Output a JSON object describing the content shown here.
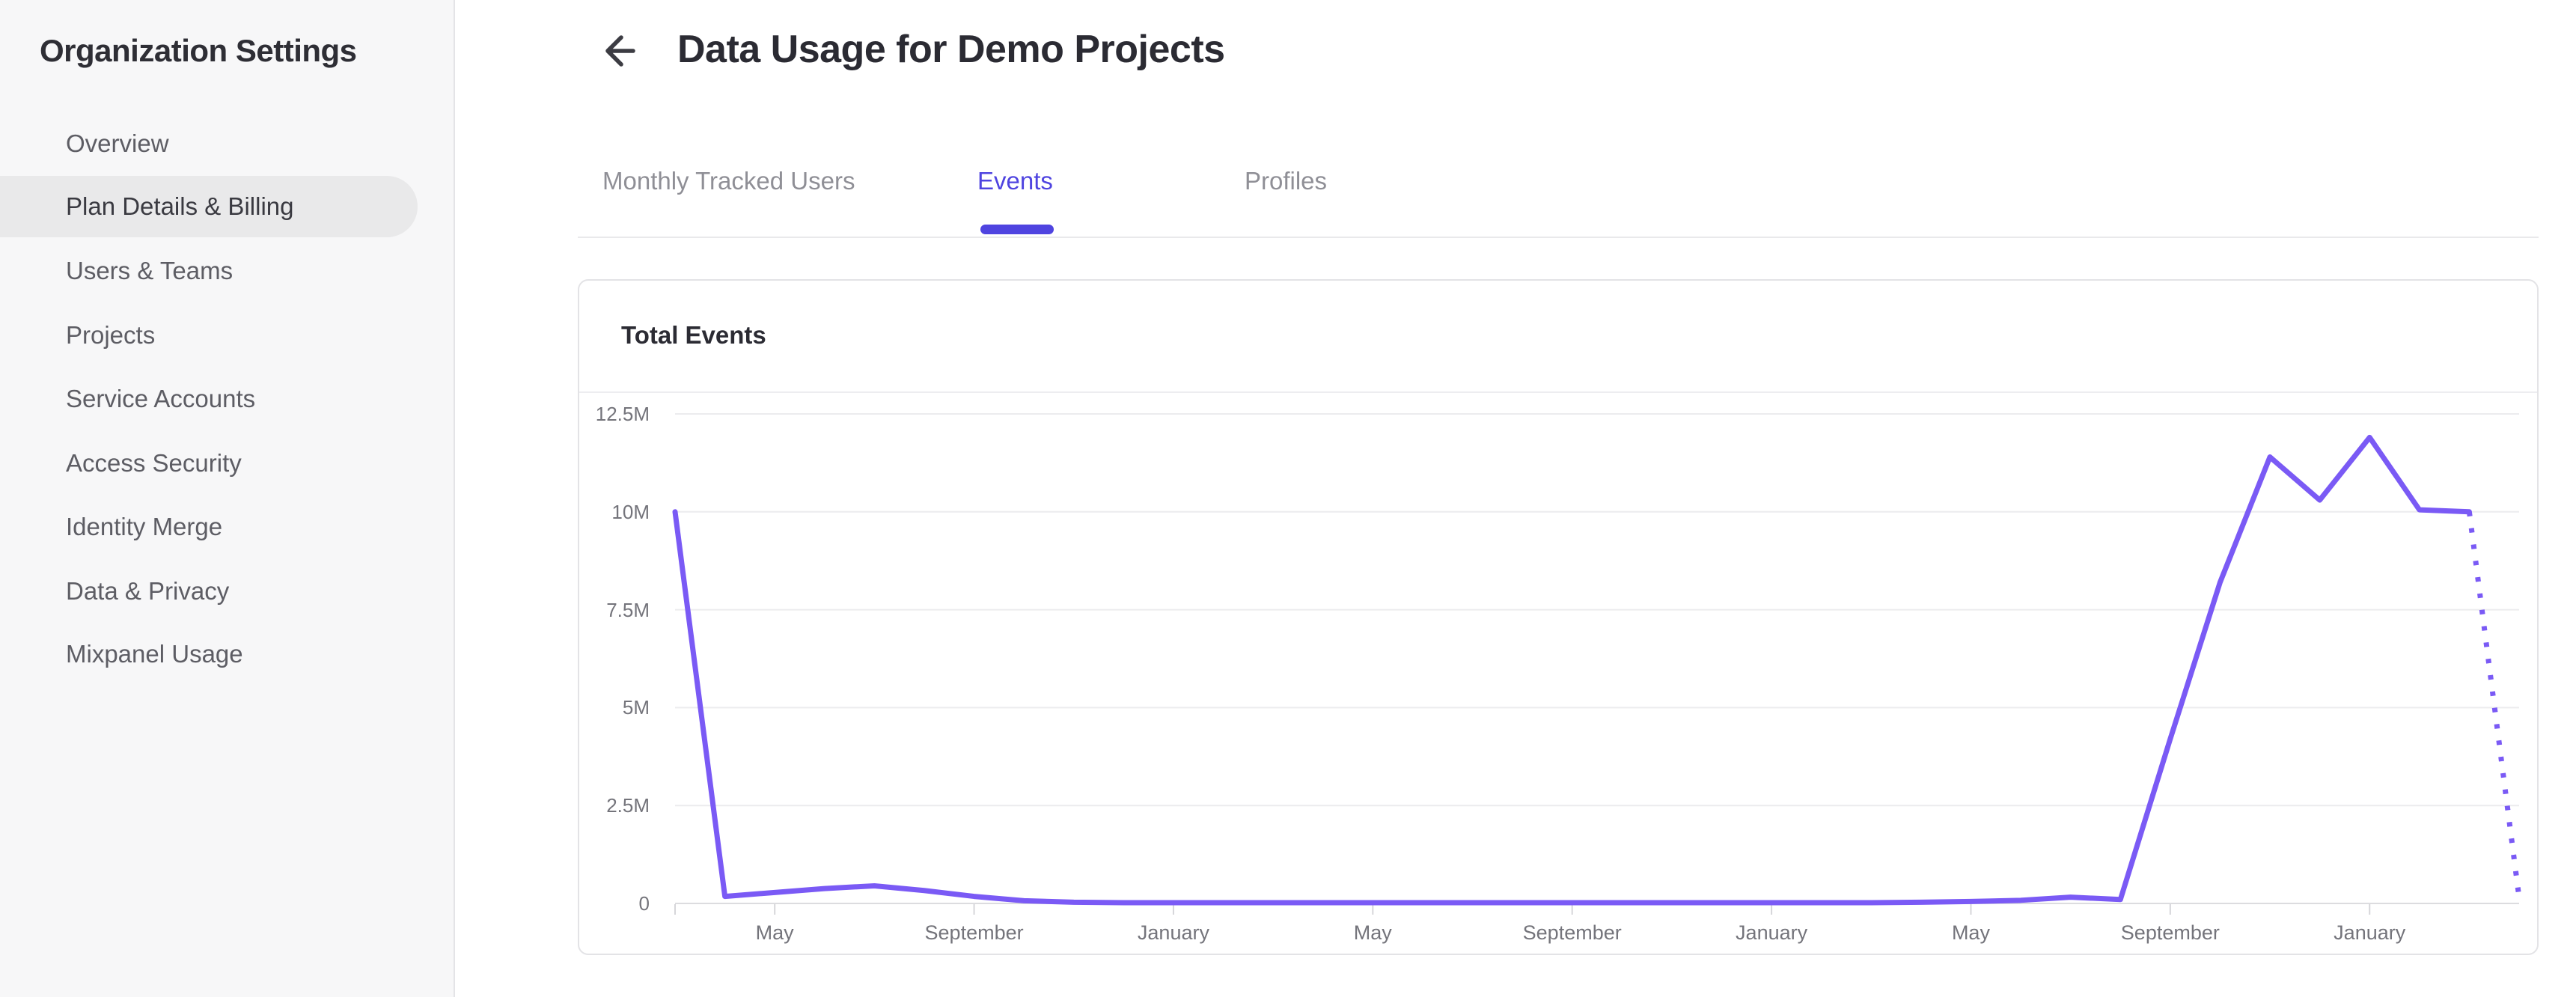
{
  "sidebar": {
    "title": "Organization Settings",
    "items": [
      {
        "label": "Overview",
        "selected": false
      },
      {
        "label": "Plan Details & Billing",
        "selected": true
      },
      {
        "label": "Users & Teams",
        "selected": false
      },
      {
        "label": "Projects",
        "selected": false
      },
      {
        "label": "Service Accounts",
        "selected": false
      },
      {
        "label": "Access Security",
        "selected": false
      },
      {
        "label": "Identity Merge",
        "selected": false
      },
      {
        "label": "Data & Privacy",
        "selected": false
      },
      {
        "label": "Mixpanel Usage",
        "selected": false
      }
    ]
  },
  "header": {
    "title": "Data Usage for Demo Projects",
    "back_icon": "left-arrow"
  },
  "tabs": [
    {
      "label": "Monthly Tracked Users",
      "active": false
    },
    {
      "label": "Events",
      "active": true
    },
    {
      "label": "Profiles",
      "active": false
    }
  ],
  "card": {
    "title": "Total Events"
  },
  "colors": {
    "accent_indigo": "#4f44e0",
    "line_purple": "#7a5af5",
    "sidebar_bg": "#f7f7f8",
    "selected_pill": "#e9e9ea",
    "grid": "#ececee",
    "zero_axis": "#dcdcdf",
    "axis_text": "#74747b"
  },
  "chart_data": {
    "type": "line",
    "title": "Total Events",
    "ylabel": "",
    "xlabel": "",
    "ylim_millions": [
      0,
      12.5
    ],
    "grid": true,
    "legend": "none",
    "y_tick_labels_top_to_bottom": [
      "12.5M",
      "10M",
      "7.5M",
      "5M",
      "2.5M",
      "0"
    ],
    "y_tick_values_millions": [
      12.5,
      10,
      7.5,
      5,
      2.5,
      0
    ],
    "x_tick_labels": [
      "May",
      "September",
      "January",
      "May",
      "September",
      "January",
      "May",
      "September",
      "January"
    ],
    "x_tick_month_index": [
      2,
      6,
      10,
      14,
      18,
      22,
      26,
      30,
      34
    ],
    "months_span": 37,
    "series": [
      {
        "name": "Total Events",
        "style": "solid",
        "values_millions_by_month": [
          10,
          0.18,
          0.28,
          0.38,
          0.45,
          0.33,
          0.18,
          0.07,
          0.03,
          0.02,
          0.02,
          0.02,
          0.02,
          0.02,
          0.02,
          0.02,
          0.02,
          0.02,
          0.02,
          0.02,
          0.02,
          0.02,
          0.02,
          0.02,
          0.02,
          0.03,
          0.05,
          0.08,
          0.16,
          0.1,
          4.2,
          8.2,
          11.4,
          10.3,
          11.9,
          10.05,
          10.0
        ]
      }
    ],
    "projection_dotted": {
      "from_month_index": 36,
      "from_value_millions": 10.0,
      "to_month_index": 37,
      "to_value_millions": 0.15
    }
  }
}
